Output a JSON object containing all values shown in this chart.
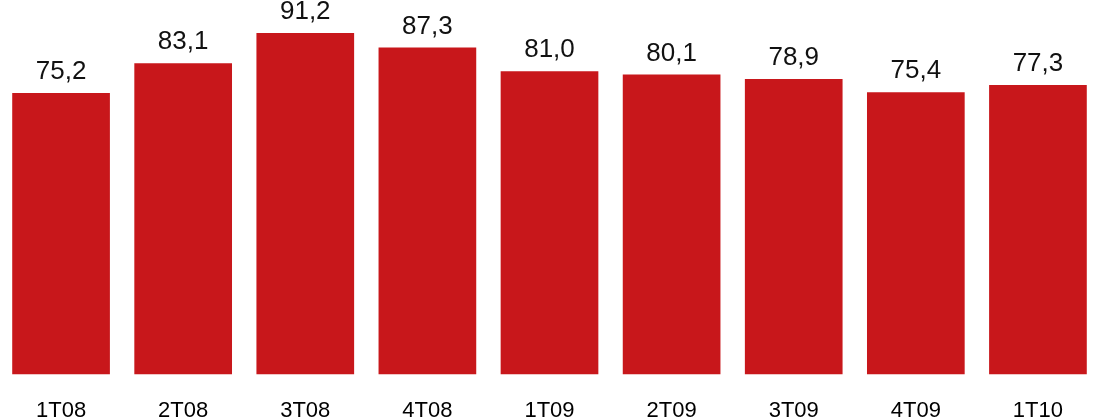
{
  "chart_data": {
    "type": "bar",
    "categories": [
      "1T08",
      "2T08",
      "3T08",
      "4T08",
      "1T09",
      "2T09",
      "3T09",
      "4T09",
      "1T10"
    ],
    "values": [
      75.2,
      83.1,
      91.2,
      87.3,
      81.0,
      80.1,
      78.9,
      75.4,
      77.3
    ],
    "value_labels": [
      "75,2",
      "83,1",
      "91,2",
      "87,3",
      "81,0",
      "80,1",
      "78,9",
      "75,4",
      "77,3"
    ],
    "color": "#c8171b",
    "tick_labels": "x"
  }
}
